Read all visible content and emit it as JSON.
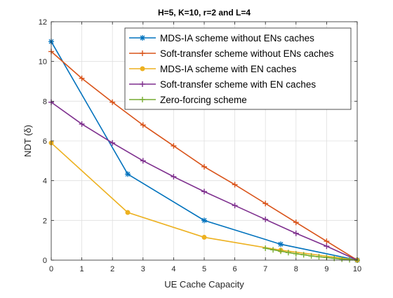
{
  "chart_data": {
    "type": "line",
    "title": "H=5, K=10, r=2 and L=4",
    "xlabel": "UE Cache Capacity",
    "ylabel": "NDT (δ)",
    "xlim": [
      0,
      10
    ],
    "ylim": [
      0,
      12
    ],
    "xticks": [
      0,
      1,
      2,
      3,
      4,
      5,
      6,
      7,
      8,
      9,
      10
    ],
    "yticks": [
      0,
      2,
      4,
      6,
      8,
      10,
      12
    ],
    "grid": true,
    "legend_position": "top-right",
    "series": [
      {
        "name": "MDS-IA scheme without ENs caches",
        "color": "#0072BD",
        "marker": "asterisk",
        "x": [
          0,
          2.5,
          5,
          7.5,
          10
        ],
        "y": [
          11.0,
          4.33,
          2.0,
          0.8,
          0.0
        ]
      },
      {
        "name": "Soft-transfer scheme without ENs caches",
        "color": "#D95319",
        "marker": "plus",
        "x": [
          0,
          1,
          2,
          3,
          4,
          5,
          6,
          7,
          8,
          9,
          10
        ],
        "y": [
          10.5,
          9.15,
          7.95,
          6.8,
          5.75,
          4.7,
          3.8,
          2.85,
          1.9,
          0.95,
          0.0
        ]
      },
      {
        "name": "MDS-IA scheme with EN caches",
        "color": "#EDB120",
        "marker": "dot",
        "x": [
          0,
          2.5,
          5,
          7.5,
          10
        ],
        "y": [
          5.9,
          2.4,
          1.15,
          0.5,
          0.0
        ]
      },
      {
        "name": "Soft-transfer scheme with EN caches",
        "color": "#7E2F8E",
        "marker": "plus",
        "x": [
          0,
          1,
          2,
          3,
          4,
          5,
          6,
          7,
          8,
          9,
          10
        ],
        "y": [
          7.95,
          6.85,
          5.9,
          5.0,
          4.2,
          3.45,
          2.75,
          2.05,
          1.35,
          0.7,
          0.0
        ]
      },
      {
        "name": "Zero-forcing scheme",
        "color": "#77AC30",
        "marker": "plus",
        "x": [
          7.0,
          7.25,
          7.5,
          7.75,
          8.0,
          8.25,
          8.5,
          8.75,
          9.0,
          9.25,
          9.5,
          9.75,
          10.0
        ],
        "y": [
          0.6,
          0.52,
          0.45,
          0.38,
          0.32,
          0.27,
          0.21,
          0.17,
          0.13,
          0.09,
          0.05,
          0.02,
          0.0
        ]
      }
    ]
  }
}
